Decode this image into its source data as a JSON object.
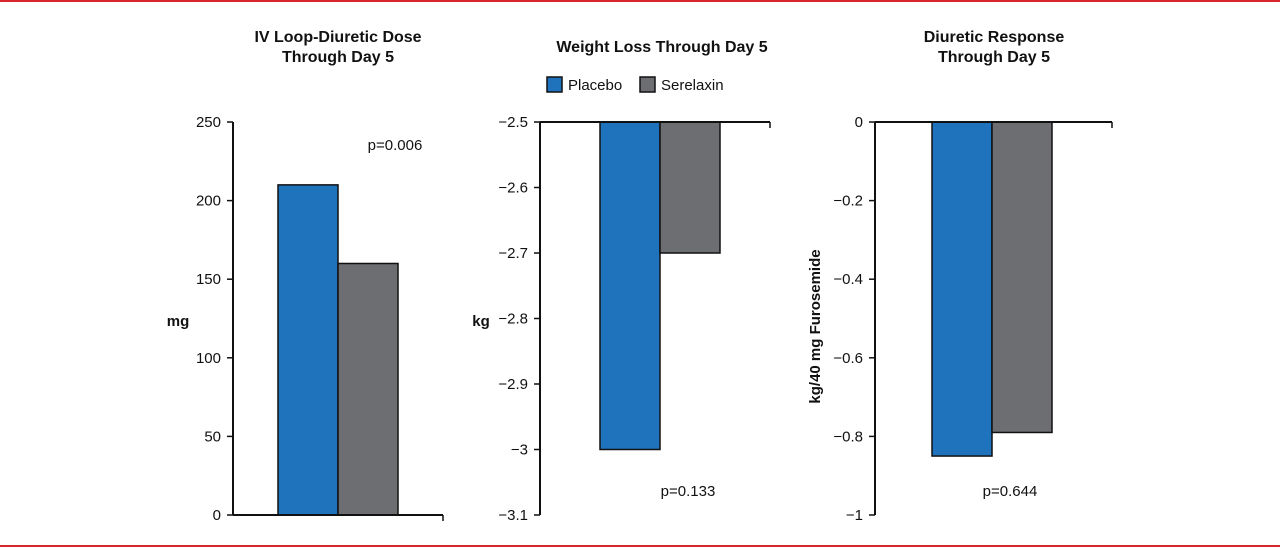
{
  "colors": {
    "placebo": "#1f73bd",
    "serelaxin": "#6d6e71",
    "frame": "#d9262b"
  },
  "legend": [
    {
      "label": "Placebo",
      "color": "#1f73bd"
    },
    {
      "label": "Serelaxin",
      "color": "#6d6e71"
    }
  ],
  "chart_data": [
    {
      "type": "bar",
      "title": [
        "IV Loop-Diuretic Dose",
        "Through Day 5"
      ],
      "ylabel": "mg",
      "ylim": [
        0,
        250
      ],
      "yticks": [
        0,
        50,
        100,
        150,
        200,
        250
      ],
      "ytick_labels": [
        "0",
        "50",
        "100",
        "150",
        "200",
        "250"
      ],
      "categories": [
        "Placebo",
        "Serelaxin"
      ],
      "values": [
        210,
        160
      ],
      "annotation": "p=0.006"
    },
    {
      "type": "bar",
      "title": [
        "Weight Loss Through Day 5"
      ],
      "ylabel": "kg",
      "ylim": [
        -3.1,
        -2.5
      ],
      "yticks": [
        -2.5,
        -2.6,
        -2.7,
        -2.8,
        -2.9,
        -3.0,
        -3.1
      ],
      "ytick_labels": [
        "−2.5",
        "−2.6",
        "−2.7",
        "−2.8",
        "−2.9",
        "−3",
        "−3.1"
      ],
      "categories": [
        "Placebo",
        "Serelaxin"
      ],
      "values": [
        -3.0,
        -2.7
      ],
      "annotation": "p=0.133",
      "legend_position": "top"
    },
    {
      "type": "bar",
      "title": [
        "Diuretic Response",
        "Through Day 5"
      ],
      "ylabel": "kg/40 mg Furosemide",
      "ylim": [
        -1,
        0
      ],
      "yticks": [
        0,
        -0.2,
        -0.4,
        -0.6,
        -0.8,
        -1
      ],
      "ytick_labels": [
        "0",
        "−0.2",
        "−0.4",
        "−0.6",
        "−0.8",
        "−1"
      ],
      "categories": [
        "Placebo",
        "Serelaxin"
      ],
      "values": [
        -0.85,
        -0.79
      ],
      "annotation": "p=0.644"
    }
  ]
}
